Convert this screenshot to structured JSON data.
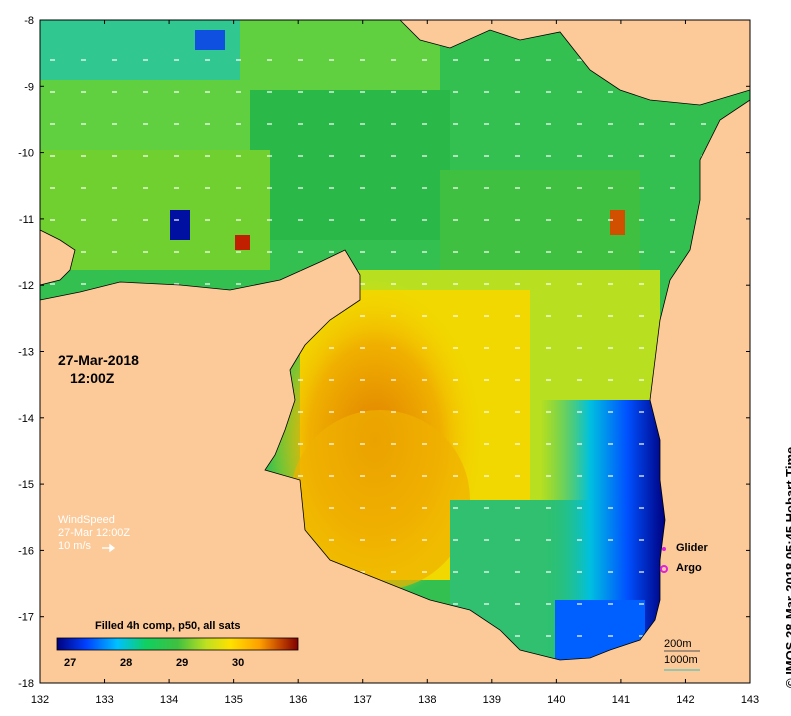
{
  "map": {
    "lon_ticks": [
      "132",
      "133",
      "134",
      "135",
      "136",
      "137",
      "138",
      "139",
      "140",
      "141",
      "142",
      "143"
    ],
    "lat_ticks": [
      "-8",
      "-9",
      "-10",
      "-11",
      "-12",
      "-13",
      "-14",
      "-15",
      "-16",
      "-17",
      "-18"
    ],
    "lon_range": [
      132,
      143
    ],
    "lat_range": [
      -8,
      -18
    ]
  },
  "colors": {
    "land": "#fcc998",
    "sst_scale": [
      "#00007f",
      "#0040ff",
      "#00c0ff",
      "#10d060",
      "#40c040",
      "#c0e020",
      "#ffe000",
      "#ffa000",
      "#c04000",
      "#800000"
    ]
  },
  "labels": {
    "date": "27-Mar-2018",
    "time": "12:00Z",
    "wind_title": "WindSpeed",
    "wind_time": "27-Mar 12:00Z",
    "wind_ref": "10 m/s",
    "colorbar_title": "Filled 4h comp, p50, all sats",
    "colorbar_ticks": [
      "27",
      "28",
      "29",
      "30"
    ],
    "glider": "Glider",
    "argo": "Argo",
    "depth_200": "200m",
    "depth_1000": "1000m",
    "credit": "© IMOS 28-Mar-2018 05:45 Hobart Time"
  }
}
